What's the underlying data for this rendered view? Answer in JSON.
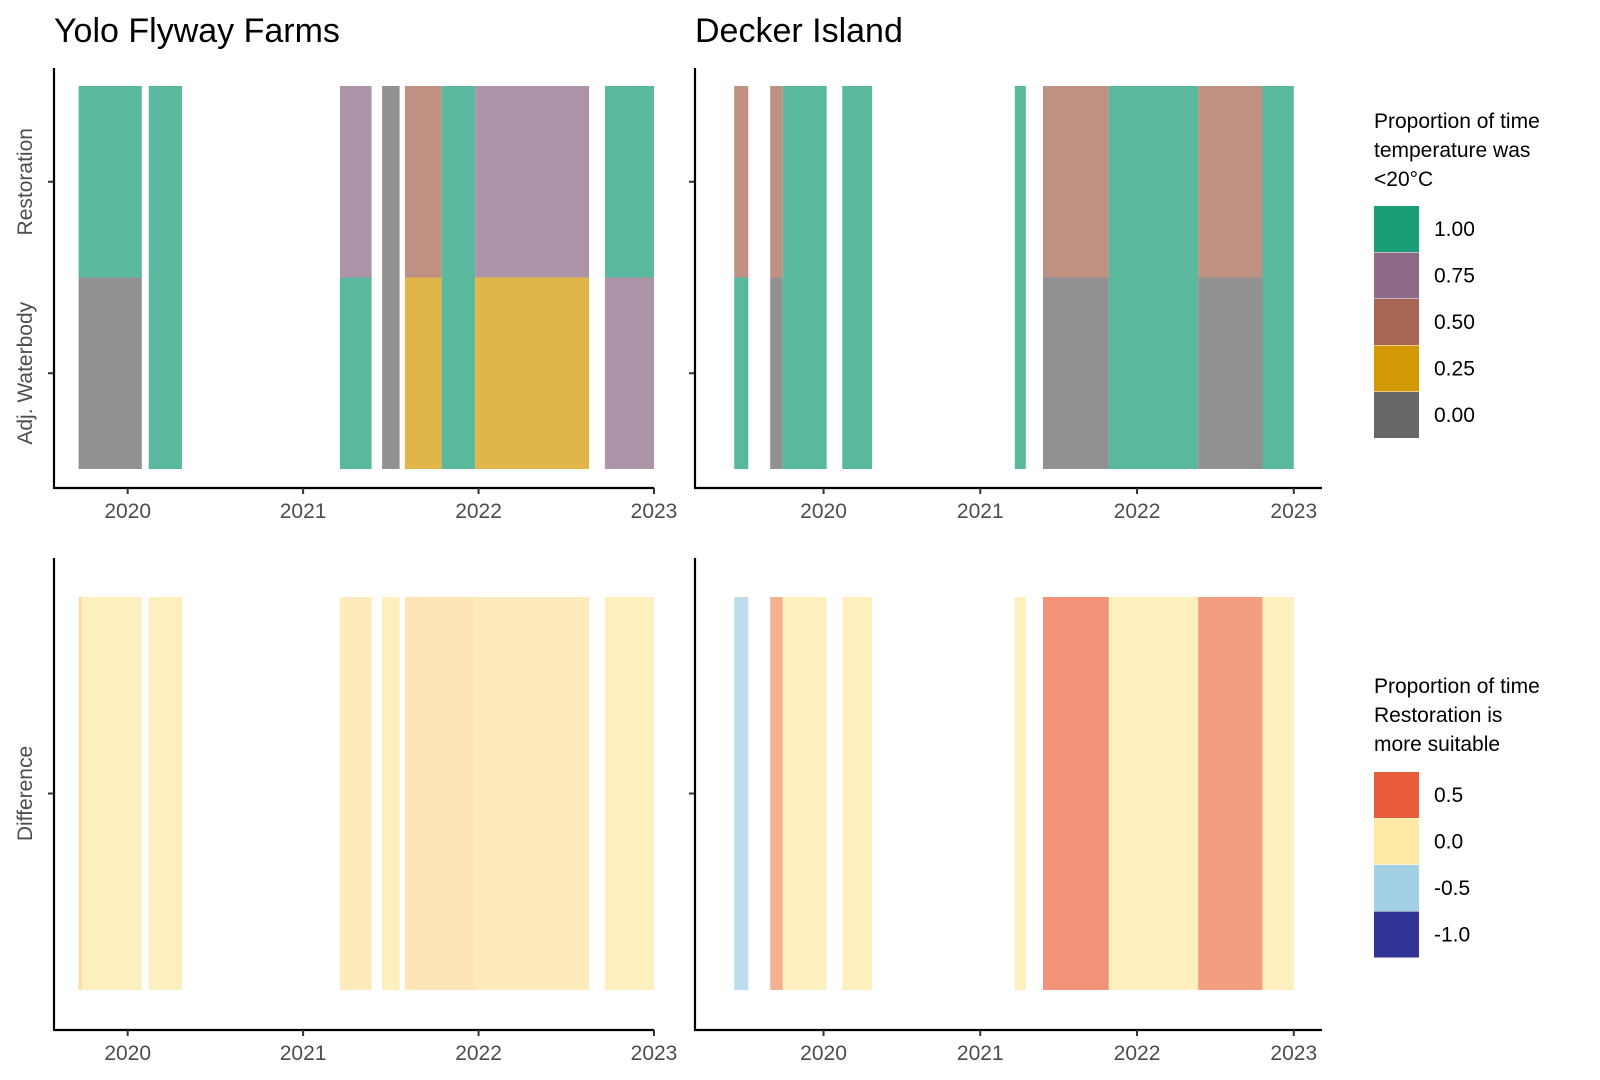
{
  "chart_data": [
    {
      "type": "heatmap",
      "title": "Yolo Flyway Farms",
      "panel": "temperature",
      "x_ticks": [
        "2020",
        "2021",
        "2022",
        "2023"
      ],
      "x_range": [
        2019.58,
        2023.0
      ],
      "y_categories": [
        "Restoration",
        "Adj. Waterbody"
      ],
      "date_spans": [
        [
          2019.72,
          2020.08
        ],
        [
          2020.12,
          2020.31
        ],
        [
          2021.21,
          2021.39
        ],
        [
          2021.45,
          2021.55
        ],
        [
          2021.58,
          2021.79
        ],
        [
          2021.79,
          2021.98
        ],
        [
          2021.98,
          2022.63
        ],
        [
          2022.72,
          2023.0
        ]
      ],
      "series": [
        {
          "name": "Restoration",
          "values": [
            1.0,
            1.0,
            0.75,
            0.0,
            0.5,
            1.0,
            0.75,
            1.0
          ]
        },
        {
          "name": "Adj. Waterbody",
          "values": [
            0.0,
            1.0,
            1.0,
            0.0,
            0.25,
            1.0,
            0.25,
            0.75
          ]
        }
      ],
      "grid": false,
      "legend": "right"
    },
    {
      "type": "heatmap",
      "title": "Decker Island",
      "panel": "temperature",
      "x_ticks": [
        "2020",
        "2021",
        "2022",
        "2023"
      ],
      "x_range": [
        2019.18,
        2023.18
      ],
      "y_categories": [
        "Restoration",
        "Adj. Waterbody"
      ],
      "date_spans": [
        [
          2019.43,
          2019.52
        ],
        [
          2019.66,
          2019.74
        ],
        [
          2019.74,
          2020.02
        ],
        [
          2020.12,
          2020.31
        ],
        [
          2021.22,
          2021.29
        ],
        [
          2021.4,
          2021.82
        ],
        [
          2021.82,
          2022.39
        ],
        [
          2022.39,
          2022.8
        ],
        [
          2022.8,
          2023.0
        ]
      ],
      "series": [
        {
          "name": "Restoration",
          "values": [
            0.5,
            0.5,
            1.0,
            1.0,
            1.0,
            0.5,
            1.0,
            0.5,
            1.0
          ]
        },
        {
          "name": "Adj. Waterbody",
          "values": [
            1.0,
            0.0,
            1.0,
            1.0,
            1.0,
            0.0,
            1.0,
            0.0,
            1.0
          ]
        }
      ],
      "grid": false,
      "legend": "right"
    },
    {
      "type": "heatmap",
      "panel": "difference",
      "x_ticks": [
        "2020",
        "2021",
        "2022",
        "2023"
      ],
      "x_range": [
        2019.58,
        2023.0
      ],
      "y_categories": [
        "Difference"
      ],
      "date_spans": [
        [
          2019.72,
          2019.74
        ],
        [
          2019.74,
          2020.08
        ],
        [
          2020.12,
          2020.31
        ],
        [
          2021.21,
          2021.39
        ],
        [
          2021.45,
          2021.55
        ],
        [
          2021.58,
          2021.98
        ],
        [
          2021.98,
          2022.63
        ],
        [
          2022.72,
          2023.0
        ]
      ],
      "series": [
        {
          "name": "Difference",
          "values": [
            0.1,
            0.0,
            0.0,
            0.02,
            0.0,
            0.05,
            0.02,
            0.0
          ]
        }
      ],
      "grid": false,
      "legend": "right"
    },
    {
      "type": "heatmap",
      "panel": "difference",
      "x_ticks": [
        "2020",
        "2021",
        "2022",
        "2023"
      ],
      "x_range": [
        2019.18,
        2023.18
      ],
      "y_categories": [
        "Difference"
      ],
      "date_spans": [
        [
          2019.43,
          2019.52
        ],
        [
          2019.66,
          2019.74
        ],
        [
          2019.74,
          2020.02
        ],
        [
          2020.12,
          2020.31
        ],
        [
          2021.22,
          2021.29
        ],
        [
          2021.4,
          2021.82
        ],
        [
          2021.82,
          2022.39
        ],
        [
          2022.39,
          2022.8
        ],
        [
          2022.8,
          2023.0
        ]
      ],
      "series": [
        {
          "name": "Difference",
          "values": [
            -0.5,
            0.3,
            0.0,
            0.0,
            0.0,
            0.45,
            0.0,
            0.4,
            0.0
          ]
        }
      ],
      "grid": false,
      "legend": "right"
    }
  ],
  "legends": {
    "temperature": {
      "title_lines": [
        "Proportion of time",
        "temperature was",
        "<20°C"
      ],
      "items": [
        {
          "label": "1.00",
          "color": "#1b9e77"
        },
        {
          "label": "0.75",
          "color": "#8d6b87"
        },
        {
          "label": "0.50",
          "color": "#a66653"
        },
        {
          "label": "0.25",
          "color": "#d49a06"
        },
        {
          "label": "0.00",
          "color": "#666666"
        }
      ]
    },
    "difference": {
      "title_lines": [
        "Proportion of time",
        "Restoration is",
        "more suitable"
      ],
      "items": [
        {
          "label": "0.5",
          "color": "#e95c3a"
        },
        {
          "label": "0.0",
          "color": "#fee9a5"
        },
        {
          "label": "-0.5",
          "color": "#a2d0e4"
        },
        {
          "label": "-1.0",
          "color": "#313595"
        }
      ]
    }
  },
  "colors": {
    "tile_opacity": 0.72
  }
}
